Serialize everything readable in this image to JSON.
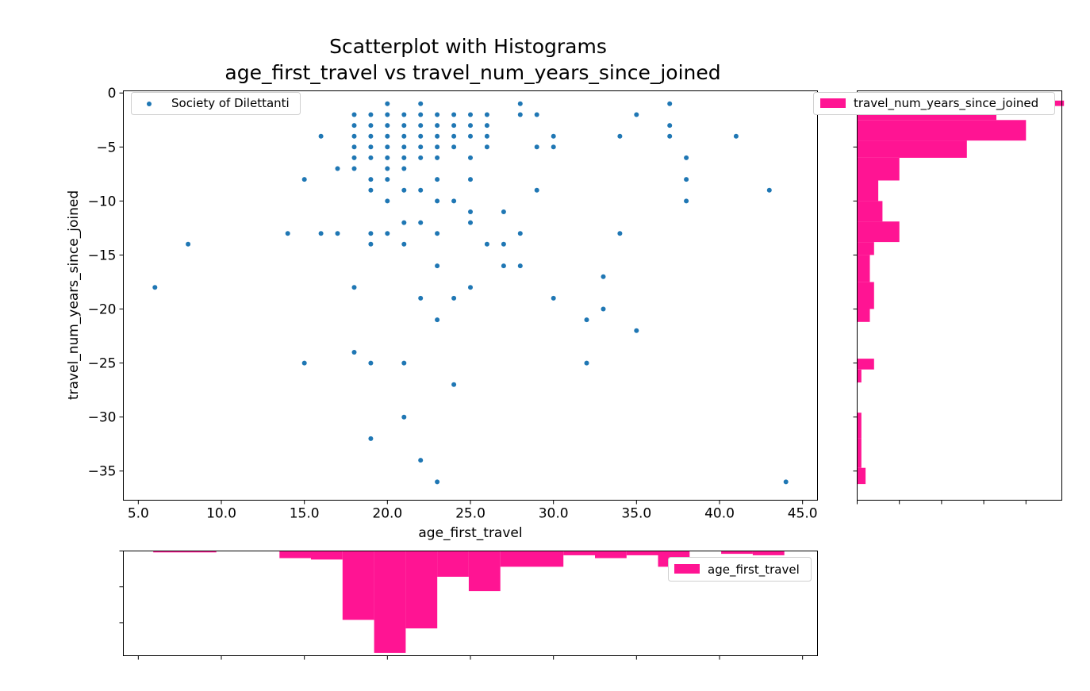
{
  "chart_data": [
    {
      "id": "scatter",
      "type": "scatter",
      "title_lines": [
        "Scatterplot with Histograms",
        "age_first_travel vs travel_num_years_since_joined"
      ],
      "xlabel": "age_first_travel",
      "ylabel": "travel_num_years_since_joined",
      "xlim": [
        4.1,
        45.9
      ],
      "ylim": [
        -37.7,
        0.2
      ],
      "xticks": [
        5.0,
        10.0,
        15.0,
        20.0,
        25.0,
        30.0,
        35.0,
        40.0,
        45.0
      ],
      "xtick_labels": [
        "5.0",
        "10.0",
        "15.0",
        "20.0",
        "25.0",
        "30.0",
        "35.0",
        "40.0",
        "45.0"
      ],
      "yticks": [
        0,
        -5,
        -10,
        -15,
        -20,
        -25,
        -30,
        -35
      ],
      "ytick_labels": [
        "0",
        "−5",
        "−10",
        "−15",
        "−20",
        "−25",
        "−30",
        "−35"
      ],
      "legend": {
        "label": "Society of Dilettanti",
        "placement": "upper-left"
      },
      "series": [
        {
          "name": "Society of Dilettanti",
          "color": "#1f77b4",
          "points": [
            [
              6,
              -18
            ],
            [
              8,
              -14
            ],
            [
              14,
              -13
            ],
            [
              15,
              -8
            ],
            [
              15,
              -25
            ],
            [
              16,
              -4
            ],
            [
              16,
              -13
            ],
            [
              17,
              -7
            ],
            [
              17,
              -13
            ],
            [
              18,
              -2
            ],
            [
              18,
              -3
            ],
            [
              18,
              -4
            ],
            [
              18,
              -5
            ],
            [
              18,
              -6
            ],
            [
              18,
              -7
            ],
            [
              18,
              -18
            ],
            [
              18,
              -24
            ],
            [
              19,
              -2
            ],
            [
              19,
              -3
            ],
            [
              19,
              -4
            ],
            [
              19,
              -5
            ],
            [
              19,
              -6
            ],
            [
              19,
              -8
            ],
            [
              19,
              -9
            ],
            [
              19,
              -13
            ],
            [
              19,
              -14
            ],
            [
              19,
              -25
            ],
            [
              19,
              -32
            ],
            [
              20,
              -1
            ],
            [
              20,
              -2
            ],
            [
              20,
              -3
            ],
            [
              20,
              -4
            ],
            [
              20,
              -5
            ],
            [
              20,
              -6
            ],
            [
              20,
              -7
            ],
            [
              20,
              -8
            ],
            [
              20,
              -10
            ],
            [
              20,
              -13
            ],
            [
              21,
              -2
            ],
            [
              21,
              -3
            ],
            [
              21,
              -4
            ],
            [
              21,
              -5
            ],
            [
              21,
              -6
            ],
            [
              21,
              -7
            ],
            [
              21,
              -9
            ],
            [
              21,
              -12
            ],
            [
              21,
              -14
            ],
            [
              21,
              -25
            ],
            [
              21,
              -30
            ],
            [
              22,
              -1
            ],
            [
              22,
              -2
            ],
            [
              22,
              -3
            ],
            [
              22,
              -4
            ],
            [
              22,
              -5
            ],
            [
              22,
              -6
            ],
            [
              22,
              -9
            ],
            [
              22,
              -12
            ],
            [
              22,
              -19
            ],
            [
              22,
              -34
            ],
            [
              23,
              -2
            ],
            [
              23,
              -3
            ],
            [
              23,
              -4
            ],
            [
              23,
              -5
            ],
            [
              23,
              -6
            ],
            [
              23,
              -8
            ],
            [
              23,
              -10
            ],
            [
              23,
              -13
            ],
            [
              23,
              -16
            ],
            [
              23,
              -21
            ],
            [
              23,
              -36
            ],
            [
              24,
              -2
            ],
            [
              24,
              -3
            ],
            [
              24,
              -4
            ],
            [
              24,
              -5
            ],
            [
              24,
              -10
            ],
            [
              24,
              -19
            ],
            [
              24,
              -27
            ],
            [
              25,
              -2
            ],
            [
              25,
              -3
            ],
            [
              25,
              -4
            ],
            [
              25,
              -6
            ],
            [
              25,
              -8
            ],
            [
              25,
              -11
            ],
            [
              25,
              -12
            ],
            [
              25,
              -18
            ],
            [
              26,
              -2
            ],
            [
              26,
              -3
            ],
            [
              26,
              -4
            ],
            [
              26,
              -5
            ],
            [
              26,
              -14
            ],
            [
              27,
              -11
            ],
            [
              27,
              -14
            ],
            [
              27,
              -16
            ],
            [
              28,
              -1
            ],
            [
              28,
              -2
            ],
            [
              28,
              -13
            ],
            [
              28,
              -16
            ],
            [
              29,
              -2
            ],
            [
              29,
              -5
            ],
            [
              29,
              -9
            ],
            [
              30,
              -4
            ],
            [
              30,
              -5
            ],
            [
              30,
              -19
            ],
            [
              32,
              -21
            ],
            [
              32,
              -25
            ],
            [
              33,
              -17
            ],
            [
              33,
              -20
            ],
            [
              34,
              -4
            ],
            [
              34,
              -13
            ],
            [
              35,
              -2
            ],
            [
              35,
              -22
            ],
            [
              37,
              -1
            ],
            [
              37,
              -3
            ],
            [
              37,
              -4
            ],
            [
              38,
              -6
            ],
            [
              38,
              -8
            ],
            [
              38,
              -10
            ],
            [
              41,
              -4
            ],
            [
              43,
              -9
            ],
            [
              44,
              -36
            ]
          ]
        }
      ]
    },
    {
      "id": "hist_y",
      "type": "bar",
      "orientation": "horizontal",
      "legend": {
        "label": "travel_num_years_since_joined",
        "placement": "upper-right"
      },
      "color": "#ff1493",
      "ylim": [
        -37.7,
        0.2
      ],
      "bins": [
        [
          -1.2,
          -0.7,
          49
        ],
        [
          -2.5,
          -1.2,
          33
        ],
        [
          -4.4,
          -2.5,
          40
        ],
        [
          -6.0,
          -4.4,
          26
        ],
        [
          -8.1,
          -6.0,
          10
        ],
        [
          -10.0,
          -8.1,
          5
        ],
        [
          -11.9,
          -10.0,
          6
        ],
        [
          -13.8,
          -11.9,
          10
        ],
        [
          -15.0,
          -13.8,
          4
        ],
        [
          -17.5,
          -15.0,
          3
        ],
        [
          -20.0,
          -17.5,
          4
        ],
        [
          -21.2,
          -20.0,
          3
        ],
        [
          -24.6,
          -21.2,
          0
        ],
        [
          -25.6,
          -24.6,
          4
        ],
        [
          -26.8,
          -25.6,
          1
        ],
        [
          -29.6,
          -26.8,
          0
        ],
        [
          -32.0,
          -29.6,
          1
        ],
        [
          -34.7,
          -32.0,
          1
        ],
        [
          -36.2,
          -34.7,
          2
        ]
      ],
      "xlim": [
        0,
        48.5
      ]
    },
    {
      "id": "hist_x",
      "type": "bar",
      "orientation": "vertical-inverted",
      "legend": {
        "label": "age_first_travel",
        "placement": "upper-right"
      },
      "color": "#ff1493",
      "xlim": [
        4.1,
        45.9
      ],
      "bins": [
        [
          5.9,
          9.7,
          1
        ],
        [
          13.5,
          15.4,
          5
        ],
        [
          15.4,
          17.3,
          6
        ],
        [
          17.3,
          19.2,
          48
        ],
        [
          19.2,
          21.1,
          71
        ],
        [
          21.1,
          23.0,
          54
        ],
        [
          23.0,
          24.9,
          18
        ],
        [
          24.9,
          26.8,
          28
        ],
        [
          26.8,
          30.6,
          11
        ],
        [
          30.6,
          32.5,
          3
        ],
        [
          32.5,
          34.4,
          5
        ],
        [
          34.4,
          36.3,
          3
        ],
        [
          36.3,
          38.2,
          11
        ],
        [
          38.2,
          40.1,
          0
        ],
        [
          40.1,
          42.0,
          2
        ],
        [
          42.0,
          43.9,
          3
        ]
      ],
      "ylim": [
        0,
        73
      ]
    }
  ]
}
